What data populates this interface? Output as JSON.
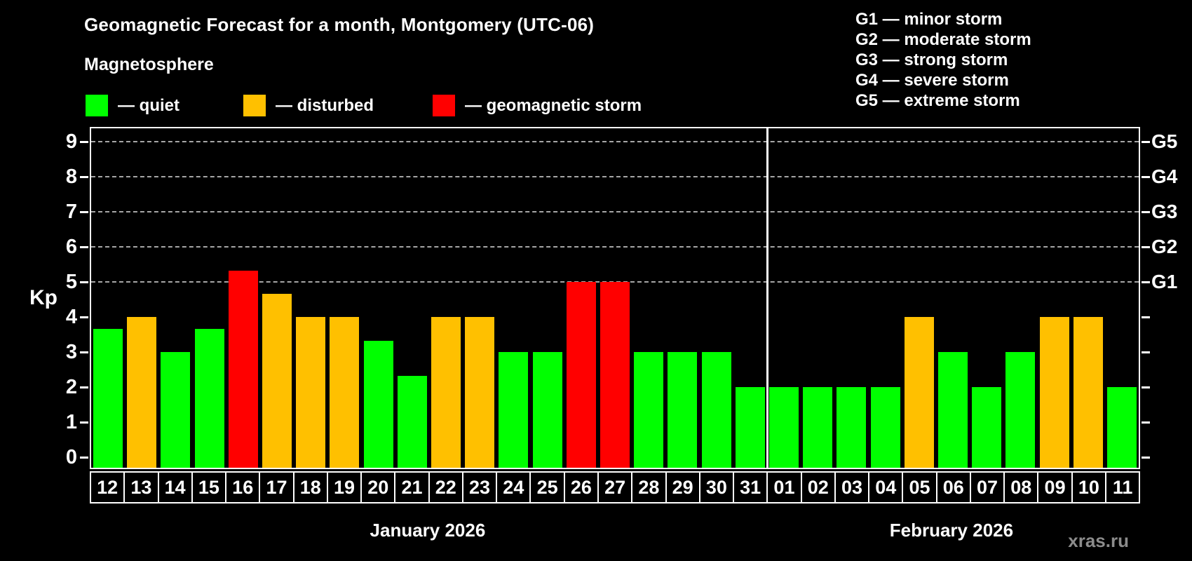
{
  "title": "Geomagnetic Forecast for a month, Montgomery (UTC-06)",
  "subtitle": "Magnetosphere",
  "legend": {
    "quiet": {
      "label": "— quiet",
      "color": "#00ff00"
    },
    "disturbed": {
      "label": "— disturbed",
      "color": "#ffc000"
    },
    "storm": {
      "label": "— geomagnetic storm",
      "color": "#ff0000"
    }
  },
  "storm_legend": [
    "G1 — minor storm",
    "G2 — moderate storm",
    "G3 — strong storm",
    "G4 — severe storm",
    "G5 — extreme storm"
  ],
  "watermark": "xras.ru",
  "chart_data": {
    "type": "bar",
    "title": "Geomagnetic Forecast for a month, Montgomery (UTC-06)",
    "ylabel": "Kp",
    "xlabel": "",
    "ylim": [
      0,
      9
    ],
    "yticks": [
      0,
      1,
      2,
      3,
      4,
      5,
      6,
      7,
      8,
      9
    ],
    "gridlines_at_kp": [
      5,
      6,
      7,
      8,
      9
    ],
    "grid": "dashed-horizontal",
    "legend_position": "top-left",
    "right_axis": [
      {
        "kp": 5,
        "label": "G1"
      },
      {
        "kp": 6,
        "label": "G2"
      },
      {
        "kp": 7,
        "label": "G3"
      },
      {
        "kp": 8,
        "label": "G4"
      },
      {
        "kp": 9,
        "label": "G5"
      }
    ],
    "months": [
      {
        "label": "January 2026",
        "days": 20
      },
      {
        "label": "February 2026",
        "days": 11
      }
    ],
    "categories": [
      "12",
      "13",
      "14",
      "15",
      "16",
      "17",
      "18",
      "19",
      "20",
      "21",
      "22",
      "23",
      "24",
      "25",
      "26",
      "27",
      "28",
      "29",
      "30",
      "31",
      "01",
      "02",
      "03",
      "04",
      "05",
      "06",
      "07",
      "08",
      "09",
      "10",
      "11"
    ],
    "values": [
      3.67,
      4,
      3,
      3.67,
      5.33,
      4.67,
      4,
      4,
      3.33,
      2.33,
      4,
      4,
      3,
      3,
      5,
      5,
      3,
      3,
      3,
      2,
      2,
      2,
      2,
      2,
      4,
      3,
      2,
      3,
      4,
      4,
      2
    ],
    "statuses": [
      "quiet",
      "disturbed",
      "quiet",
      "quiet",
      "storm",
      "disturbed",
      "disturbed",
      "disturbed",
      "quiet",
      "quiet",
      "disturbed",
      "disturbed",
      "quiet",
      "quiet",
      "storm",
      "storm",
      "quiet",
      "quiet",
      "quiet",
      "quiet",
      "quiet",
      "quiet",
      "quiet",
      "quiet",
      "disturbed",
      "quiet",
      "quiet",
      "quiet",
      "disturbed",
      "disturbed",
      "quiet"
    ],
    "status_colors": {
      "quiet": "#00ff00",
      "disturbed": "#ffc000",
      "storm": "#ff0000"
    }
  }
}
